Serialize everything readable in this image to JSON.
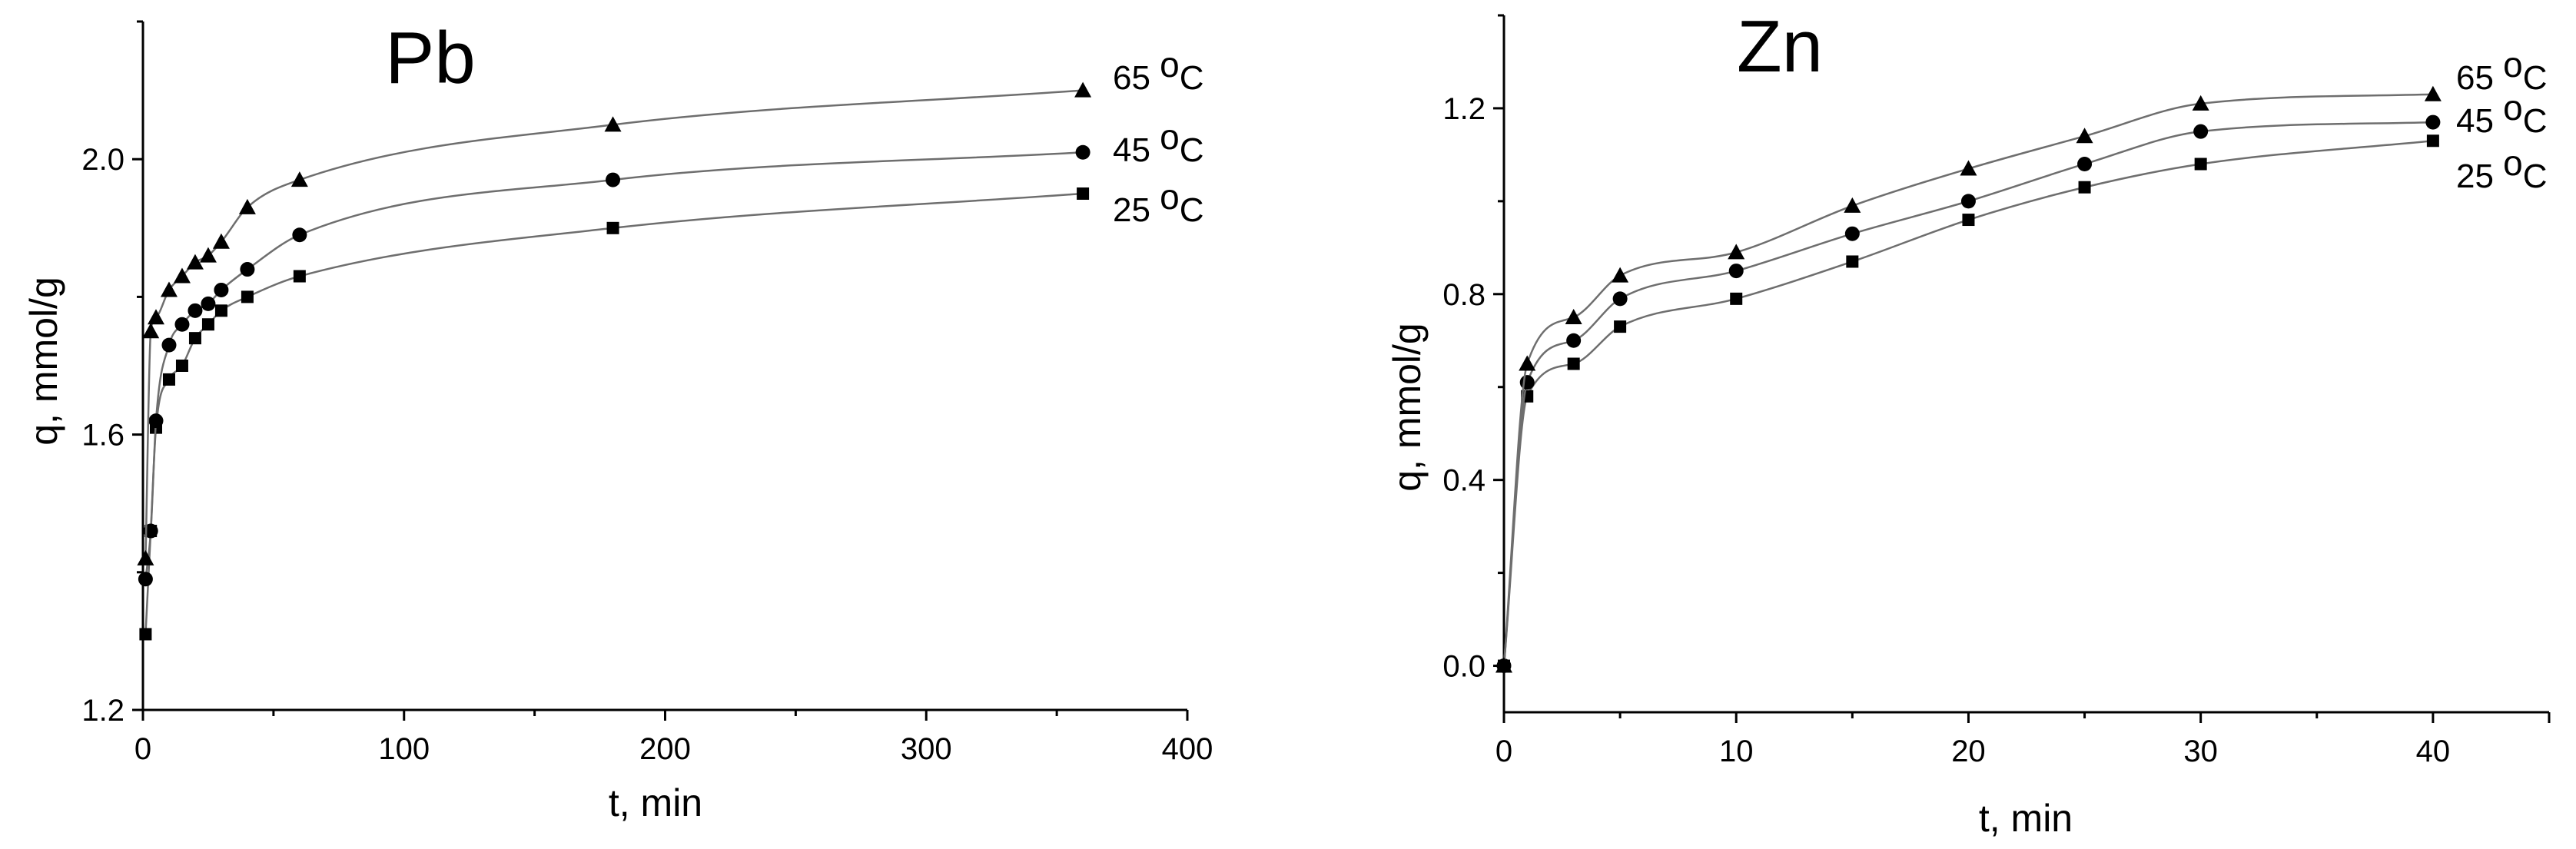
{
  "chart_data": [
    {
      "type": "scatter",
      "title": "Pb",
      "xlabel": "t, min",
      "ylabel": "q, mmol/g",
      "xlim": [
        0,
        400
      ],
      "ylim": [
        1.2,
        2.2
      ],
      "xticks": [
        0,
        100,
        200,
        300,
        400
      ],
      "yticks": [
        1.2,
        1.6,
        2.0
      ],
      "xtick_labels": [
        "0",
        "100",
        "200",
        "300",
        "400"
      ],
      "ytick_labels": [
        "1.2",
        "1.6",
        "2.0"
      ],
      "grid": false,
      "series": [
        {
          "name": "25 oC",
          "marker": "square",
          "x": [
            1,
            3,
            5,
            10,
            15,
            20,
            25,
            30,
            40,
            60,
            180,
            360
          ],
          "y": [
            1.31,
            1.46,
            1.61,
            1.68,
            1.7,
            1.74,
            1.76,
            1.78,
            1.8,
            1.83,
            1.9,
            1.95
          ]
        },
        {
          "name": "45 oC",
          "marker": "circle",
          "x": [
            1,
            3,
            5,
            10,
            15,
            20,
            25,
            30,
            40,
            60,
            180,
            360
          ],
          "y": [
            1.39,
            1.46,
            1.62,
            1.73,
            1.76,
            1.78,
            1.79,
            1.81,
            1.84,
            1.89,
            1.97,
            2.01
          ]
        },
        {
          "name": "65 oC",
          "marker": "triangle",
          "x": [
            1,
            3,
            5,
            10,
            15,
            20,
            25,
            30,
            40,
            60,
            180,
            360
          ],
          "y": [
            1.42,
            1.75,
            1.77,
            1.81,
            1.83,
            1.85,
            1.86,
            1.88,
            1.93,
            1.97,
            2.05,
            2.1
          ]
        }
      ],
      "legend": {
        "placement": "right",
        "labels": [
          {
            "number": "65",
            "sup": "o",
            "unit": "C"
          },
          {
            "number": "45",
            "sup": "o",
            "unit": "C"
          },
          {
            "number": "25",
            "sup": "o",
            "unit": "C"
          }
        ]
      }
    },
    {
      "type": "scatter",
      "title": "Zn",
      "xlabel": "t, min",
      "ylabel": "q, mmol/g",
      "xlim": [
        0,
        45
      ],
      "ylim": [
        -0.1,
        1.4
      ],
      "xticks": [
        0,
        10,
        20,
        30,
        40
      ],
      "yticks": [
        0.0,
        0.4,
        0.8,
        1.2
      ],
      "xtick_labels": [
        "0",
        "10",
        "20",
        "30",
        "40"
      ],
      "ytick_labels": [
        "0.0",
        "0.4",
        "0.8",
        "1.2"
      ],
      "grid": false,
      "series": [
        {
          "name": "25 oC",
          "marker": "square",
          "x": [
            0,
            1,
            3,
            5,
            10,
            15,
            20,
            25,
            30,
            40
          ],
          "y": [
            0.0,
            0.58,
            0.65,
            0.73,
            0.79,
            0.87,
            0.96,
            1.03,
            1.08,
            1.13
          ]
        },
        {
          "name": "45 oC",
          "marker": "circle",
          "x": [
            0,
            1,
            3,
            5,
            10,
            15,
            20,
            25,
            30,
            40
          ],
          "y": [
            0.0,
            0.61,
            0.7,
            0.79,
            0.85,
            0.93,
            1.0,
            1.08,
            1.15,
            1.17
          ]
        },
        {
          "name": "65 oC",
          "marker": "triangle",
          "x": [
            0,
            1,
            3,
            5,
            10,
            15,
            20,
            25,
            30,
            40
          ],
          "y": [
            0.0,
            0.65,
            0.75,
            0.84,
            0.89,
            0.99,
            1.07,
            1.14,
            1.21,
            1.23
          ]
        }
      ],
      "legend": {
        "placement": "right",
        "labels": [
          {
            "number": "65",
            "sup": "o",
            "unit": "C"
          },
          {
            "number": "45",
            "sup": "o",
            "unit": "C"
          },
          {
            "number": "25",
            "sup": "o",
            "unit": "C"
          }
        ]
      }
    }
  ]
}
